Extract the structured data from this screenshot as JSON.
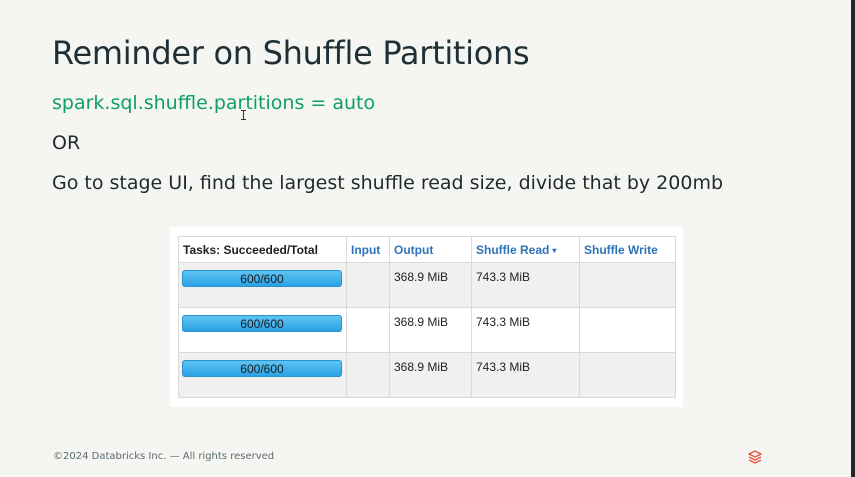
{
  "slide": {
    "title": "Reminder on Shuffle Partitions",
    "code_line": "spark.sql.shuffle.partitions = auto",
    "or_text": "OR",
    "description": "Go to stage UI, find the largest shuffle read size, divide that by 200mb",
    "footer": "©2024 Databricks Inc. — All rights reserved"
  },
  "table": {
    "headers": {
      "tasks": "Tasks: Succeeded/Total",
      "input": "Input",
      "output": "Output",
      "shuffle_read": "Shuffle Read",
      "shuffle_write": "Shuffle Write"
    },
    "sort_indicator": "▾",
    "rows": [
      {
        "tasks": "600/600",
        "progress": 1.0,
        "input": "",
        "output": "368.9 MiB",
        "shuffle_read": "743.3 MiB",
        "shuffle_write": ""
      },
      {
        "tasks": "600/600",
        "progress": 1.0,
        "input": "",
        "output": "368.9 MiB",
        "shuffle_read": "743.3 MiB",
        "shuffle_write": ""
      },
      {
        "tasks": "600/600",
        "progress": 1.0,
        "input": "",
        "output": "368.9 MiB",
        "shuffle_read": "743.3 MiB",
        "shuffle_write": ""
      }
    ]
  },
  "colors": {
    "code_green": "#0f9d6a",
    "link_blue": "#2f72b8",
    "progress_blue": "#2aa2e4",
    "logo_red": "#e8523f"
  },
  "icons": {
    "logo": "databricks-logo-icon",
    "cursor": "text-cursor-icon"
  }
}
